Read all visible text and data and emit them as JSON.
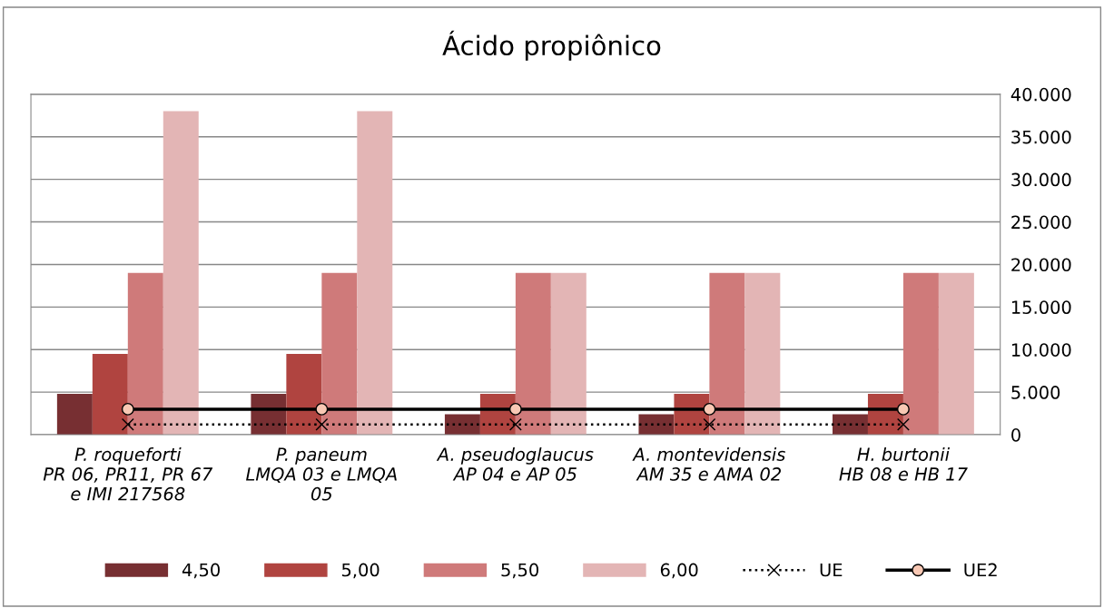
{
  "chart_data": {
    "type": "bar",
    "title": "Ácido propiônico",
    "categories": [
      "P. roqueforti\nPR 06, PR11, PR 67\ne IMI 217568",
      "P. paneum\nLMQA 03 e LMQA\n05",
      "A. pseudoglaucus\nAP 04 e AP 05",
      "A. montevidensis\nAM 35 e AMA 02",
      "H. burtonii\nHB 08 e HB 17"
    ],
    "series": [
      {
        "name": "4,50",
        "color": "#772f32",
        "values": [
          4800,
          4800,
          2400,
          2400,
          2400
        ]
      },
      {
        "name": "5,00",
        "color": "#b04440",
        "values": [
          9500,
          9500,
          4800,
          4800,
          4800
        ]
      },
      {
        "name": "5,50",
        "color": "#cf7a7a",
        "values": [
          19000,
          19000,
          19000,
          19000,
          19000
        ]
      },
      {
        "name": "6,00",
        "color": "#e3b5b5",
        "values": [
          38000,
          38000,
          19000,
          19000,
          19000
        ]
      },
      {
        "name": "UE",
        "type": "line",
        "color": "#000000",
        "marker": "cross",
        "line_style": "dotted",
        "values": [
          1200,
          1200,
          1200,
          1200,
          1200
        ]
      },
      {
        "name": "UE2",
        "type": "line",
        "color": "#000000",
        "marker": "circle",
        "line_style": "solid",
        "values": [
          3000,
          3000,
          3000,
          3000,
          3000
        ]
      }
    ],
    "ylim": [
      0,
      40000
    ],
    "yticks": [
      {
        "value": 0,
        "label": "0"
      },
      {
        "value": 5000,
        "label": "5.000"
      },
      {
        "value": 10000,
        "label": "10.000"
      },
      {
        "value": 15000,
        "label": "15.000"
      },
      {
        "value": 20000,
        "label": "20.000"
      },
      {
        "value": 25000,
        "label": "25.000"
      },
      {
        "value": 30000,
        "label": "30.000"
      },
      {
        "value": 35000,
        "label": "35.000"
      },
      {
        "value": 40000,
        "label": "40.000"
      }
    ],
    "grid": "y",
    "legend": "bottom"
  }
}
